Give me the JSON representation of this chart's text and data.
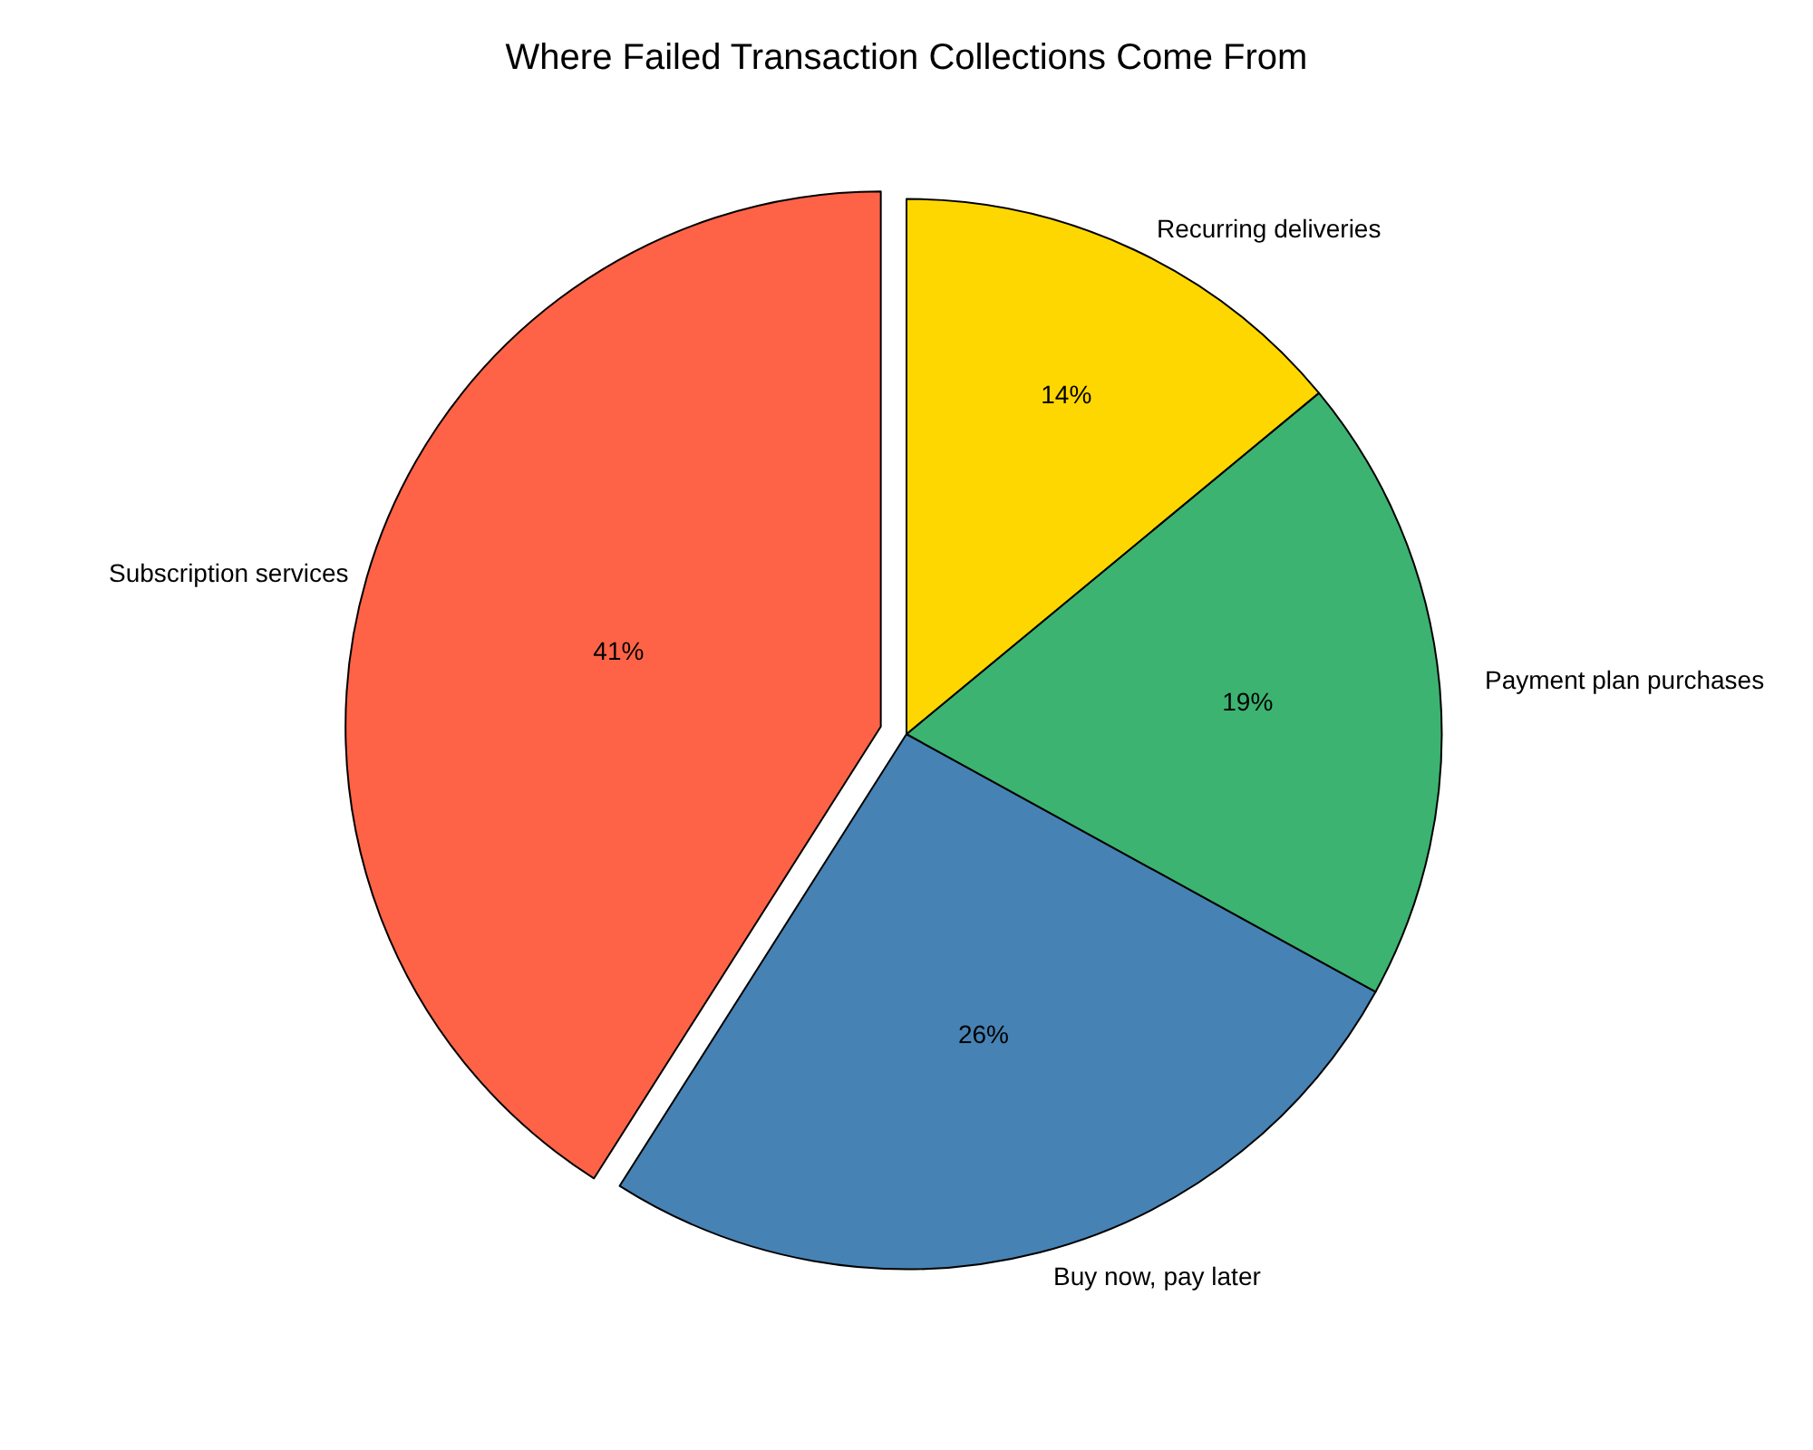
{
  "chart_data": {
    "type": "pie",
    "title": "Where Failed Transaction Collections Come From",
    "categories": [
      "Subscription services",
      "Buy now, pay later",
      "Payment plan purchases",
      "Recurring deliveries"
    ],
    "values": [
      41,
      26,
      19,
      14
    ],
    "value_labels": [
      "41%",
      "26%",
      "19%",
      "14%"
    ],
    "colors": [
      "#ff6347",
      "#4682b4",
      "#3cb371",
      "#ffd700"
    ],
    "legend": false
  }
}
